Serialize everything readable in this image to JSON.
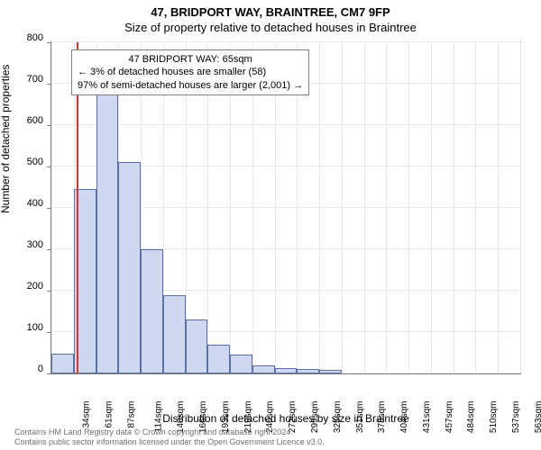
{
  "title_main": "47, BRIDPORT WAY, BRAINTREE, CM7 9FP",
  "title_sub": "Size of property relative to detached houses in Braintree",
  "ylabel": "Number of detached properties",
  "xlabel": "Distribution of detached houses by size in Braintree",
  "footer_line1": "Contains HM Land Registry data © Crown copyright and database right 2024.",
  "footer_line2": "Contains public sector information licensed under the Open Government Licence v3.0.",
  "chart": {
    "type": "histogram",
    "ylim": [
      0,
      800
    ],
    "ytick_step": 100,
    "x_categories": [
      "34sqm",
      "61sqm",
      "87sqm",
      "114sqm",
      "140sqm",
      "166sqm",
      "193sqm",
      "219sqm",
      "246sqm",
      "272sqm",
      "299sqm",
      "325sqm",
      "351sqm",
      "378sqm",
      "404sqm",
      "431sqm",
      "457sqm",
      "484sqm",
      "510sqm",
      "537sqm",
      "563sqm"
    ],
    "bar_values": [
      48,
      445,
      705,
      510,
      300,
      190,
      130,
      70,
      45,
      20,
      12,
      10,
      8,
      0,
      0,
      0,
      0,
      0,
      0,
      0,
      0
    ],
    "bar_fill": "#cfd8f0",
    "bar_border": "#5a6ea8",
    "grid_color": "#e8e8ee",
    "axis_color": "#808080",
    "marker_value_index": 1.15,
    "marker_color": "#e03030",
    "background_color": "#ffffff"
  },
  "annotation": {
    "line1": "47 BRIDPORT WAY: 65sqm",
    "line2": "← 3% of detached houses are smaller (58)",
    "line3": "97% of semi-detached houses are larger (2,001) →"
  }
}
